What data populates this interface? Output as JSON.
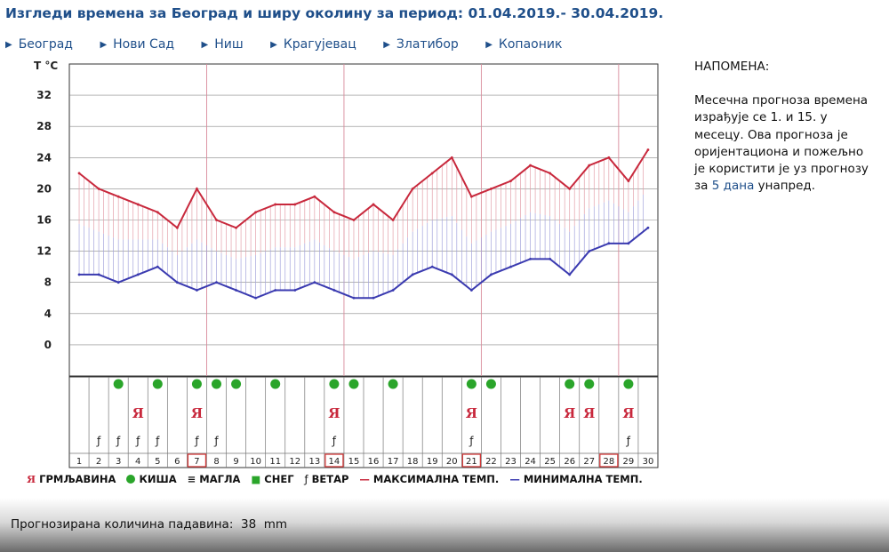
{
  "title": "Изгледи времена за Београд и ширу околину за период: 01.04.2019.- 30.04.2019.",
  "nav": [
    {
      "label": "Београд"
    },
    {
      "label": "Нови Сад"
    },
    {
      "label": "Ниш"
    },
    {
      "label": "Крагујевац"
    },
    {
      "label": "Златибор"
    },
    {
      "label": "Копаоник"
    }
  ],
  "note": {
    "heading": "НАПОМЕНА:",
    "text": "Месечна прогноза времена израђује се 1. и 15. у месецу. Ова прогноза је оријентациона и пожељно је користити је уз прогнозу за",
    "link": "5 дана",
    "text_after": "унапред."
  },
  "legend": [
    {
      "icon": "thunder-icon",
      "label": "ГРМЉАВИНА"
    },
    {
      "icon": "rain-icon",
      "label": "КИША"
    },
    {
      "icon": "fog-icon",
      "label": "МАГЛА"
    },
    {
      "icon": "snow-icon",
      "label": "СНЕГ"
    },
    {
      "icon": "wind-icon",
      "label": "ВЕТАР"
    },
    {
      "icon": "max-temp-line-icon",
      "label": "МАКСИМАЛНА ТЕМП."
    },
    {
      "icon": "min-temp-line-icon",
      "label": "МИНИМАЛНА ТЕМП."
    }
  ],
  "precip": {
    "label": "Прогнозирана количина падавина:",
    "value": "38",
    "unit": "mm"
  },
  "colors": {
    "max": "#c8283c",
    "min": "#3a3ab0",
    "rain": "#2aa52a",
    "title": "#1f4f8a",
    "grid": "#d88a9a",
    "highlight": "#d23a3a"
  },
  "chart_data": {
    "type": "line",
    "ylabel": "T °C",
    "ylim": [
      -4,
      36
    ],
    "yticks": [
      0,
      4,
      8,
      12,
      16,
      20,
      24,
      28,
      32
    ],
    "x": [
      1,
      2,
      3,
      4,
      5,
      6,
      7,
      8,
      9,
      10,
      11,
      12,
      13,
      14,
      15,
      16,
      17,
      18,
      19,
      20,
      21,
      22,
      23,
      24,
      25,
      26,
      27,
      28,
      29,
      30
    ],
    "series": [
      {
        "name": "МАКСИМАЛНА ТЕМП.",
        "values": [
          22,
          20,
          19,
          18,
          17,
          15,
          20,
          16,
          15,
          17,
          18,
          18,
          19,
          17,
          16,
          18,
          16,
          20,
          22,
          24,
          19,
          20,
          21,
          23,
          22,
          20,
          23,
          24,
          21,
          25
        ]
      },
      {
        "name": "МИНИМАЛНА ТЕМП.",
        "values": [
          9,
          9,
          8,
          9,
          10,
          8,
          7,
          8,
          7,
          6,
          7,
          7,
          8,
          7,
          6,
          6,
          7,
          9,
          10,
          9,
          7,
          9,
          10,
          11,
          11,
          9,
          12,
          13,
          13,
          15
        ]
      }
    ],
    "rain_days": [
      3,
      5,
      7,
      8,
      9,
      11,
      14,
      15,
      17,
      21,
      22,
      26,
      27,
      29
    ],
    "thunder_days": [
      4,
      7,
      14,
      21,
      26,
      27,
      29
    ],
    "wind_days": [
      2,
      3,
      4,
      5,
      7,
      8,
      14,
      21,
      29
    ],
    "highlight_days": [
      7,
      14,
      21,
      28
    ]
  }
}
